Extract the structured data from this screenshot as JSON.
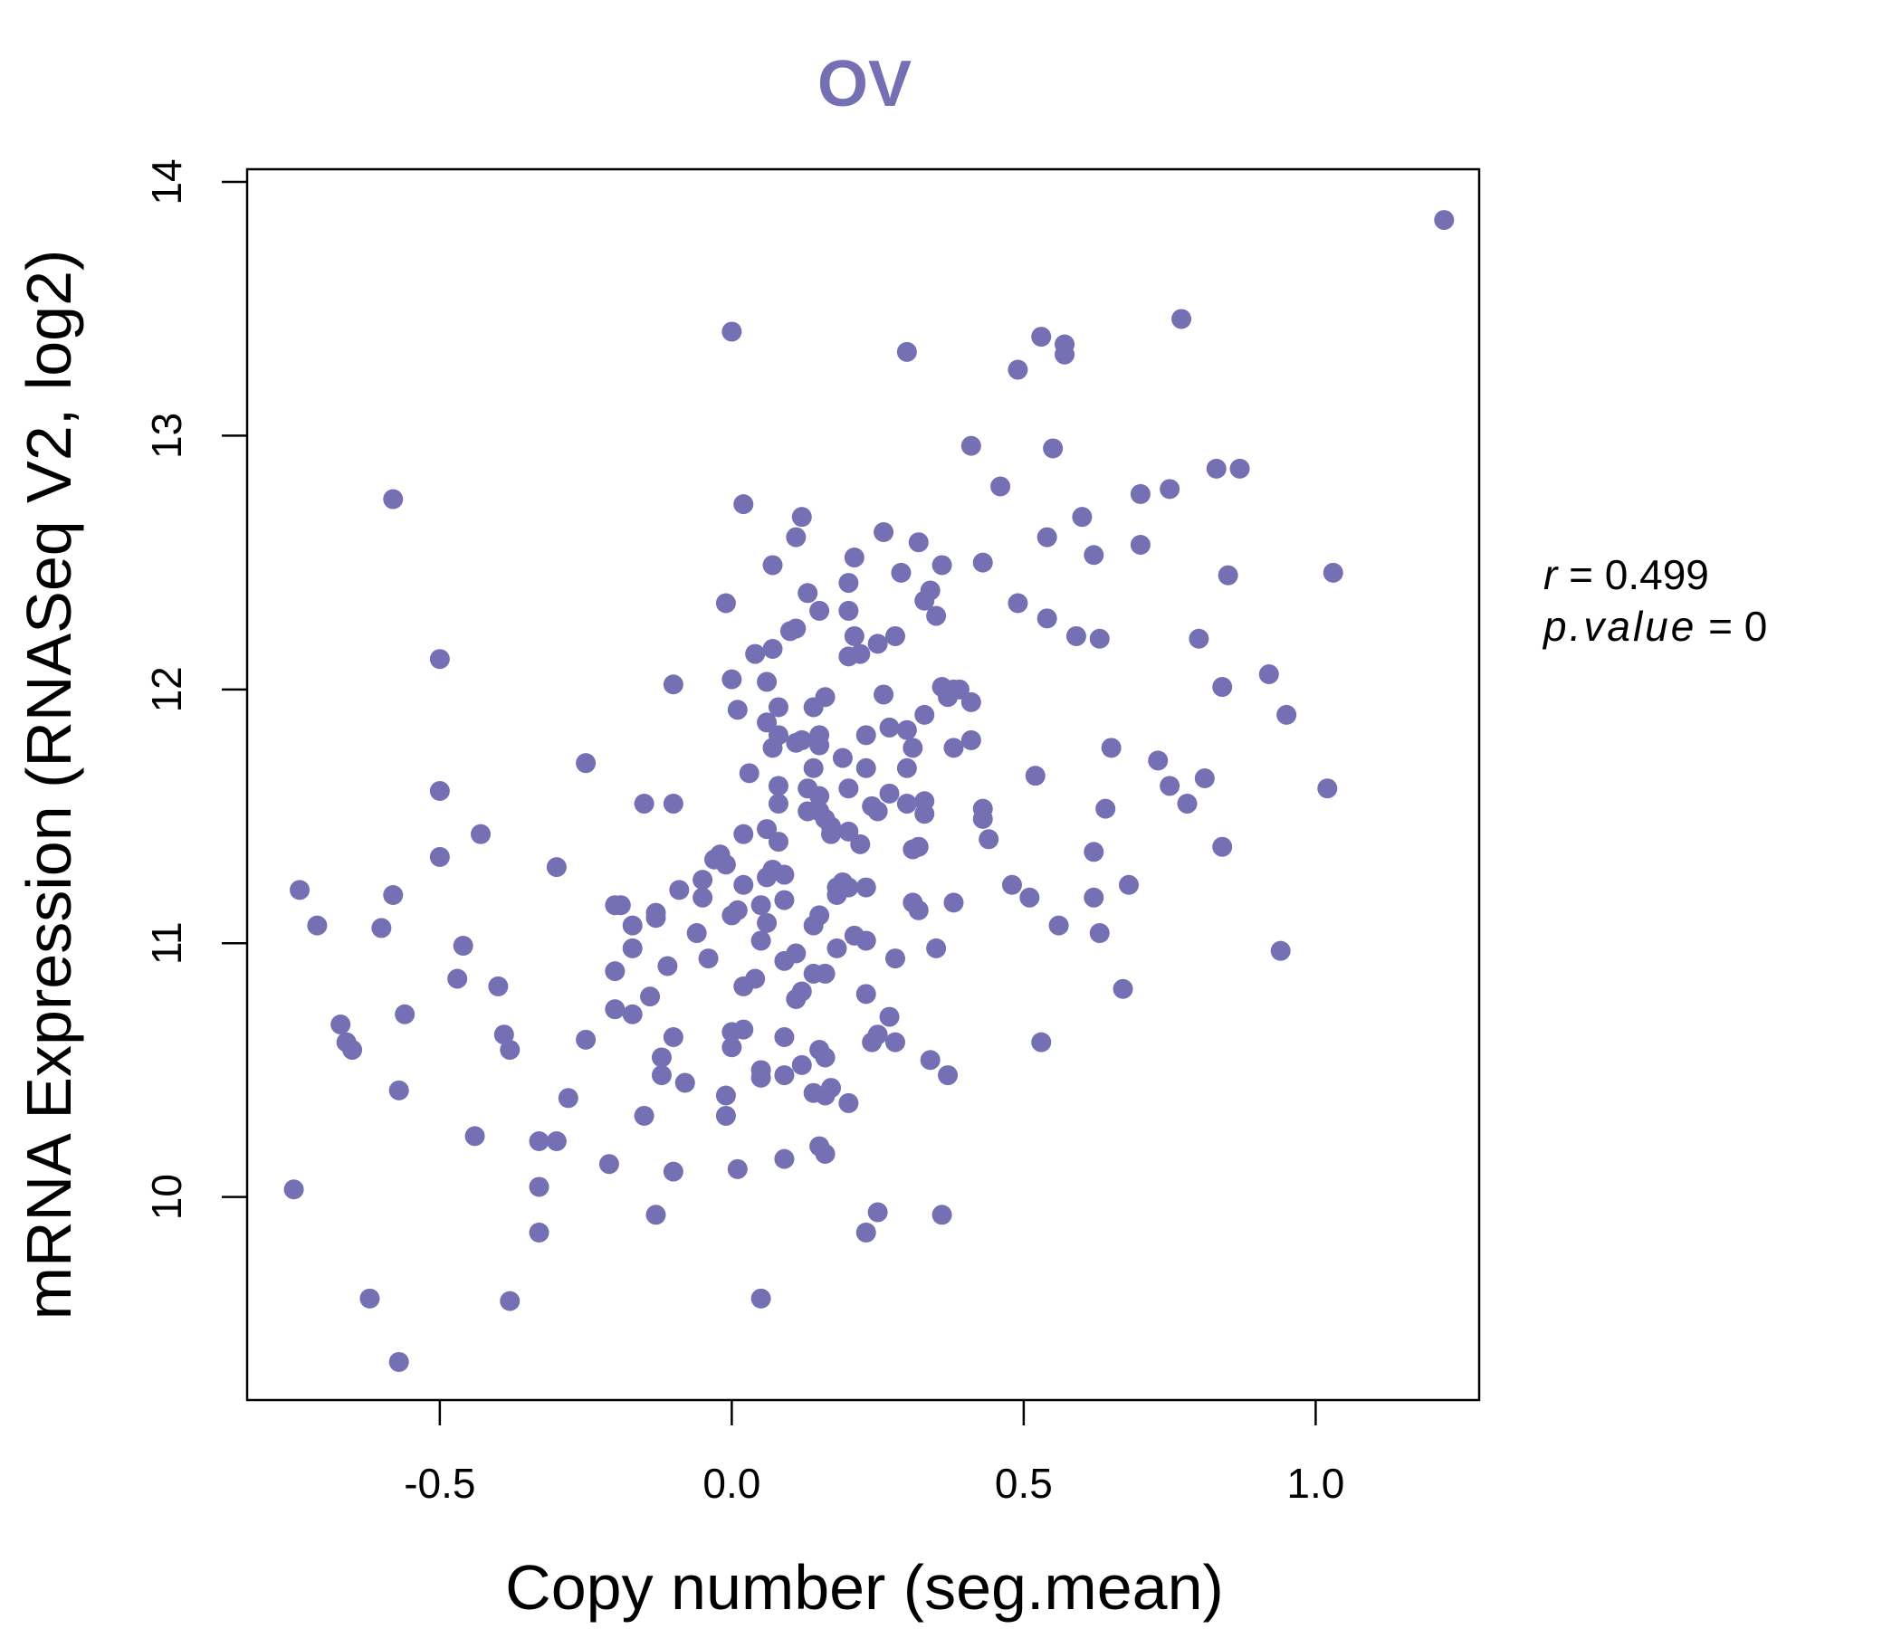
{
  "chart_data": {
    "type": "scatter",
    "title": "OV",
    "xlabel": "Copy number (seg.mean)",
    "ylabel": "mRNA Expression (RNASeq V2, log2)",
    "xlim": [
      -0.83,
      1.28
    ],
    "ylim": [
      9.2,
      14.05
    ],
    "x_ticks": [
      -0.5,
      0.0,
      0.5,
      1.0
    ],
    "x_tick_labels": [
      "-0.5",
      "0.0",
      "0.5",
      "1.0"
    ],
    "y_ticks": [
      10,
      11,
      12,
      13,
      14
    ],
    "y_tick_labels": [
      "10",
      "11",
      "12",
      "13",
      "14"
    ],
    "point_color": "#7570b3",
    "title_color": "#7570b3",
    "stats": {
      "r_label": "r",
      "r_value": "0.499",
      "p_label": "p.value",
      "p_value": "0"
    },
    "points": [
      [
        -0.75,
        10.03
      ],
      [
        -0.74,
        11.21
      ],
      [
        -0.71,
        11.07
      ],
      [
        -0.67,
        10.68
      ],
      [
        -0.66,
        10.61
      ],
      [
        -0.65,
        10.58
      ],
      [
        -0.62,
        9.6
      ],
      [
        -0.6,
        11.06
      ],
      [
        -0.58,
        12.75
      ],
      [
        -0.58,
        11.19
      ],
      [
        -0.57,
        10.42
      ],
      [
        -0.57,
        9.35
      ],
      [
        -0.56,
        10.72
      ],
      [
        -0.5,
        12.12
      ],
      [
        -0.5,
        11.6
      ],
      [
        -0.5,
        11.34
      ],
      [
        -0.47,
        10.86
      ],
      [
        -0.46,
        10.99
      ],
      [
        -0.44,
        10.24
      ],
      [
        -0.43,
        11.43
      ],
      [
        -0.4,
        10.83
      ],
      [
        -0.39,
        10.64
      ],
      [
        -0.38,
        10.58
      ],
      [
        -0.38,
        9.59
      ],
      [
        -0.33,
        10.22
      ],
      [
        -0.33,
        10.04
      ],
      [
        -0.33,
        9.86
      ],
      [
        -0.3,
        10.22
      ],
      [
        -0.3,
        11.3
      ],
      [
        -0.28,
        10.39
      ],
      [
        -0.25,
        10.62
      ],
      [
        -0.25,
        11.71
      ],
      [
        -0.21,
        10.13
      ],
      [
        -0.2,
        10.74
      ],
      [
        -0.2,
        11.15
      ],
      [
        -0.2,
        10.89
      ],
      [
        -0.19,
        11.15
      ],
      [
        -0.17,
        10.72
      ],
      [
        -0.17,
        10.98
      ],
      [
        -0.17,
        11.07
      ],
      [
        -0.15,
        11.55
      ],
      [
        -0.15,
        10.32
      ],
      [
        -0.14,
        10.79
      ],
      [
        -0.13,
        11.12
      ],
      [
        -0.13,
        11.1
      ],
      [
        -0.13,
        9.93
      ],
      [
        -0.12,
        10.48
      ],
      [
        -0.12,
        10.55
      ],
      [
        -0.11,
        10.91
      ],
      [
        -0.1,
        12.02
      ],
      [
        -0.1,
        11.55
      ],
      [
        -0.1,
        10.63
      ],
      [
        -0.1,
        10.1
      ],
      [
        -0.09,
        11.21
      ],
      [
        -0.08,
        10.45
      ],
      [
        -0.06,
        11.04
      ],
      [
        -0.05,
        11.18
      ],
      [
        -0.05,
        11.25
      ],
      [
        -0.04,
        10.94
      ],
      [
        -0.03,
        11.33
      ],
      [
        -0.02,
        11.35
      ],
      [
        -0.01,
        11.31
      ],
      [
        -0.01,
        12.34
      ],
      [
        -0.01,
        10.32
      ],
      [
        -0.01,
        10.4
      ],
      [
        0.0,
        12.04
      ],
      [
        0.0,
        13.41
      ],
      [
        0.0,
        11.11
      ],
      [
        0.0,
        10.59
      ],
      [
        0.0,
        10.65
      ],
      [
        0.01,
        11.92
      ],
      [
        0.01,
        10.11
      ],
      [
        0.01,
        11.13
      ],
      [
        0.02,
        12.73
      ],
      [
        0.02,
        11.43
      ],
      [
        0.02,
        11.23
      ],
      [
        0.02,
        10.66
      ],
      [
        0.02,
        10.83
      ],
      [
        0.03,
        11.67
      ],
      [
        0.04,
        12.14
      ],
      [
        0.04,
        10.86
      ],
      [
        0.05,
        11.15
      ],
      [
        0.05,
        11.01
      ],
      [
        0.05,
        10.5
      ],
      [
        0.05,
        10.47
      ],
      [
        0.05,
        9.6
      ],
      [
        0.06,
        12.03
      ],
      [
        0.06,
        11.87
      ],
      [
        0.06,
        11.45
      ],
      [
        0.06,
        11.08
      ],
      [
        0.06,
        11.26
      ],
      [
        0.07,
        12.16
      ],
      [
        0.07,
        11.77
      ],
      [
        0.07,
        12.49
      ],
      [
        0.07,
        11.29
      ],
      [
        0.08,
        11.93
      ],
      [
        0.08,
        11.82
      ],
      [
        0.08,
        11.62
      ],
      [
        0.08,
        11.55
      ],
      [
        0.08,
        11.4
      ],
      [
        0.09,
        11.27
      ],
      [
        0.09,
        11.17
      ],
      [
        0.09,
        10.63
      ],
      [
        0.09,
        10.93
      ],
      [
        0.09,
        10.48
      ],
      [
        0.09,
        10.15
      ],
      [
        0.1,
        12.23
      ],
      [
        0.11,
        12.24
      ],
      [
        0.11,
        12.6
      ],
      [
        0.11,
        11.79
      ],
      [
        0.11,
        10.96
      ],
      [
        0.11,
        10.78
      ],
      [
        0.12,
        12.68
      ],
      [
        0.12,
        11.8
      ],
      [
        0.12,
        10.81
      ],
      [
        0.12,
        10.52
      ],
      [
        0.13,
        11.61
      ],
      [
        0.13,
        11.52
      ],
      [
        0.13,
        12.38
      ],
      [
        0.14,
        11.93
      ],
      [
        0.14,
        11.69
      ],
      [
        0.14,
        11.07
      ],
      [
        0.14,
        10.88
      ],
      [
        0.14,
        10.41
      ],
      [
        0.15,
        11.82
      ],
      [
        0.15,
        11.78
      ],
      [
        0.15,
        11.58
      ],
      [
        0.15,
        11.52
      ],
      [
        0.15,
        11.11
      ],
      [
        0.15,
        10.58
      ],
      [
        0.15,
        10.2
      ],
      [
        0.15,
        12.31
      ],
      [
        0.16,
        11.97
      ],
      [
        0.16,
        11.49
      ],
      [
        0.16,
        10.88
      ],
      [
        0.16,
        10.55
      ],
      [
        0.16,
        10.4
      ],
      [
        0.16,
        10.17
      ],
      [
        0.17,
        11.46
      ],
      [
        0.17,
        11.43
      ],
      [
        0.17,
        10.43
      ],
      [
        0.18,
        11.22
      ],
      [
        0.18,
        11.19
      ],
      [
        0.18,
        10.98
      ],
      [
        0.19,
        11.73
      ],
      [
        0.19,
        11.24
      ],
      [
        0.2,
        12.42
      ],
      [
        0.2,
        12.31
      ],
      [
        0.2,
        11.61
      ],
      [
        0.2,
        11.44
      ],
      [
        0.2,
        11.22
      ],
      [
        0.2,
        10.37
      ],
      [
        0.2,
        12.13
      ],
      [
        0.21,
        12.21
      ],
      [
        0.21,
        12.52
      ],
      [
        0.21,
        11.03
      ],
      [
        0.22,
        12.14
      ],
      [
        0.22,
        11.39
      ],
      [
        0.23,
        11.82
      ],
      [
        0.23,
        11.69
      ],
      [
        0.23,
        11.22
      ],
      [
        0.23,
        11.01
      ],
      [
        0.23,
        10.8
      ],
      [
        0.23,
        9.86
      ],
      [
        0.24,
        11.54
      ],
      [
        0.24,
        10.61
      ],
      [
        0.25,
        12.18
      ],
      [
        0.25,
        11.52
      ],
      [
        0.25,
        10.64
      ],
      [
        0.25,
        9.94
      ],
      [
        0.26,
        12.62
      ],
      [
        0.26,
        11.98
      ],
      [
        0.27,
        11.85
      ],
      [
        0.27,
        11.59
      ],
      [
        0.27,
        10.71
      ],
      [
        0.28,
        12.21
      ],
      [
        0.28,
        10.94
      ],
      [
        0.28,
        10.61
      ],
      [
        0.29,
        12.46
      ],
      [
        0.3,
        13.33
      ],
      [
        0.3,
        11.84
      ],
      [
        0.3,
        11.69
      ],
      [
        0.3,
        11.55
      ],
      [
        0.31,
        11.37
      ],
      [
        0.31,
        11.16
      ],
      [
        0.31,
        11.77
      ],
      [
        0.32,
        11.38
      ],
      [
        0.32,
        11.13
      ],
      [
        0.32,
        12.58
      ],
      [
        0.33,
        12.35
      ],
      [
        0.33,
        11.9
      ],
      [
        0.33,
        11.56
      ],
      [
        0.33,
        11.51
      ],
      [
        0.34,
        12.39
      ],
      [
        0.34,
        10.54
      ],
      [
        0.35,
        12.29
      ],
      [
        0.35,
        10.98
      ],
      [
        0.36,
        12.49
      ],
      [
        0.36,
        12.01
      ],
      [
        0.36,
        9.93
      ],
      [
        0.37,
        11.97
      ],
      [
        0.37,
        10.48
      ],
      [
        0.38,
        12.0
      ],
      [
        0.38,
        11.77
      ],
      [
        0.38,
        11.16
      ],
      [
        0.39,
        12.0
      ],
      [
        0.41,
        11.8
      ],
      [
        0.41,
        11.95
      ],
      [
        0.41,
        12.96
      ],
      [
        0.43,
        11.53
      ],
      [
        0.43,
        11.49
      ],
      [
        0.43,
        12.5
      ],
      [
        0.44,
        11.41
      ],
      [
        0.46,
        12.8
      ],
      [
        0.48,
        11.23
      ],
      [
        0.49,
        12.34
      ],
      [
        0.49,
        13.26
      ],
      [
        0.51,
        11.18
      ],
      [
        0.52,
        11.66
      ],
      [
        0.53,
        13.39
      ],
      [
        0.53,
        10.61
      ],
      [
        0.54,
        12.28
      ],
      [
        0.54,
        12.6
      ],
      [
        0.55,
        12.95
      ],
      [
        0.56,
        11.07
      ],
      [
        0.57,
        13.32
      ],
      [
        0.57,
        13.36
      ],
      [
        0.59,
        12.21
      ],
      [
        0.6,
        12.68
      ],
      [
        0.62,
        12.53
      ],
      [
        0.62,
        11.36
      ],
      [
        0.62,
        11.18
      ],
      [
        0.63,
        12.2
      ],
      [
        0.63,
        11.04
      ],
      [
        0.64,
        11.53
      ],
      [
        0.65,
        11.77
      ],
      [
        0.67,
        10.82
      ],
      [
        0.68,
        11.23
      ],
      [
        0.7,
        12.77
      ],
      [
        0.7,
        12.57
      ],
      [
        0.73,
        11.72
      ],
      [
        0.75,
        11.62
      ],
      [
        0.75,
        12.79
      ],
      [
        0.77,
        13.46
      ],
      [
        0.78,
        11.55
      ],
      [
        0.8,
        12.2
      ],
      [
        0.81,
        11.65
      ],
      [
        0.83,
        12.87
      ],
      [
        0.84,
        11.38
      ],
      [
        0.84,
        12.01
      ],
      [
        0.85,
        12.45
      ],
      [
        0.87,
        12.87
      ],
      [
        0.92,
        12.06
      ],
      [
        0.94,
        10.97
      ],
      [
        0.95,
        11.9
      ],
      [
        1.02,
        11.61
      ],
      [
        1.03,
        12.46
      ],
      [
        1.22,
        13.85
      ]
    ]
  }
}
